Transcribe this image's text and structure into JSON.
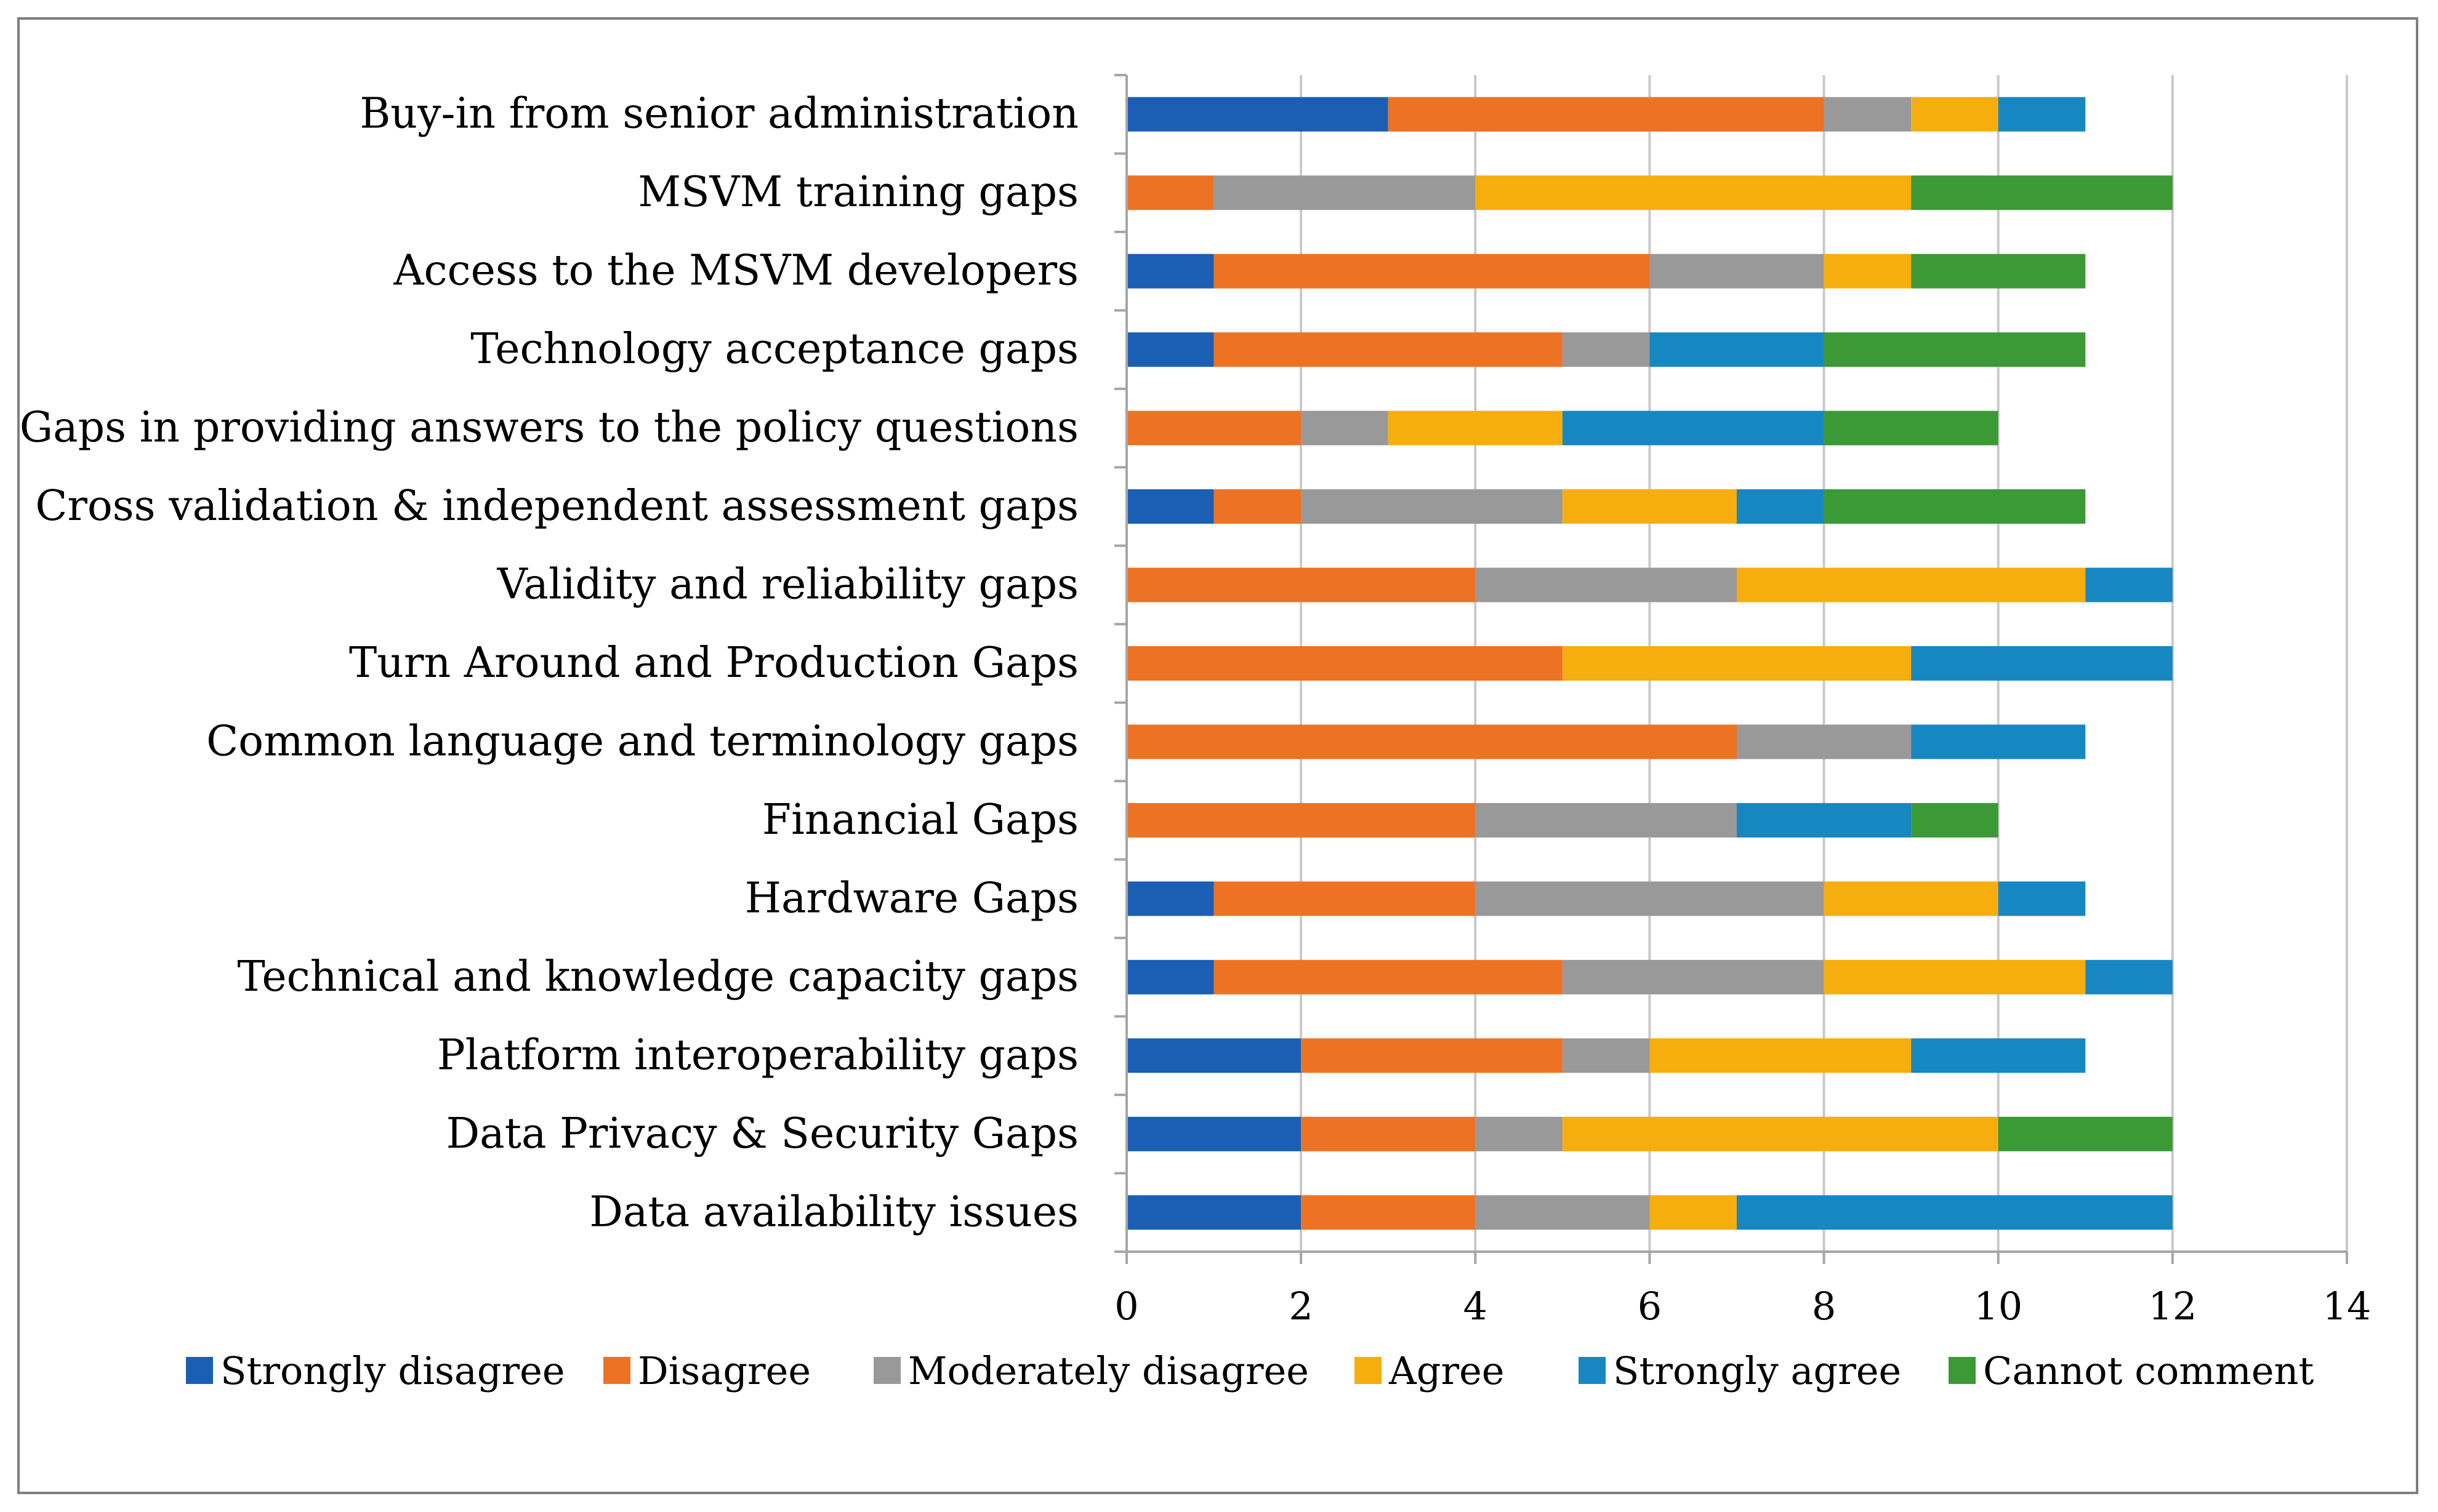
{
  "chart_data": {
    "type": "bar",
    "orientation": "horizontal",
    "stacked": true,
    "title": "",
    "xlabel": "",
    "ylabel": "",
    "xlim": [
      0,
      14
    ],
    "x_ticks": [
      "0",
      "2",
      "4",
      "6",
      "8",
      "10",
      "12",
      "14"
    ],
    "grid": "vertical",
    "legend_position": "bottom",
    "categories": [
      "Buy-in from senior administration",
      "MSVM training gaps",
      "Access to the MSVM developers",
      "Technology acceptance gaps",
      "Gaps in providing answers to the policy questions",
      "Cross validation & independent assessment gaps",
      "Validity and reliability gaps",
      "Turn Around and Production Gaps",
      "Common language and terminology gaps",
      "Financial Gaps",
      "Hardware Gaps",
      "Technical and knowledge capacity gaps",
      "Platform interoperability gaps",
      "Data Privacy & Security Gaps",
      "Data availability issues"
    ],
    "series": [
      {
        "name": "Strongly disagree",
        "color": "#1a5fb4",
        "values": [
          3,
          0,
          1,
          1,
          0,
          1,
          0,
          0,
          0,
          0,
          1,
          1,
          2,
          2,
          2
        ]
      },
      {
        "name": "Disagree",
        "color": "#ed7224",
        "values": [
          5,
          1,
          5,
          4,
          2,
          1,
          4,
          5,
          7,
          4,
          3,
          4,
          3,
          2,
          2
        ]
      },
      {
        "name": "Moderately disagree",
        "color": "#999999",
        "values": [
          1,
          3,
          2,
          1,
          1,
          3,
          3,
          0,
          2,
          3,
          4,
          3,
          1,
          1,
          2
        ]
      },
      {
        "name": "Agree",
        "color": "#f6ae0e",
        "values": [
          1,
          5,
          1,
          0,
          2,
          2,
          4,
          4,
          0,
          0,
          2,
          3,
          3,
          5,
          1
        ]
      },
      {
        "name": "Strongly agree",
        "color": "#1787c2",
        "values": [
          1,
          0,
          0,
          2,
          3,
          1,
          1,
          3,
          2,
          2,
          1,
          1,
          2,
          0,
          5
        ]
      },
      {
        "name": "Cannot comment",
        "color": "#3b9a35",
        "values": [
          0,
          3,
          2,
          3,
          2,
          3,
          0,
          0,
          0,
          1,
          0,
          0,
          0,
          2,
          0
        ]
      }
    ]
  }
}
